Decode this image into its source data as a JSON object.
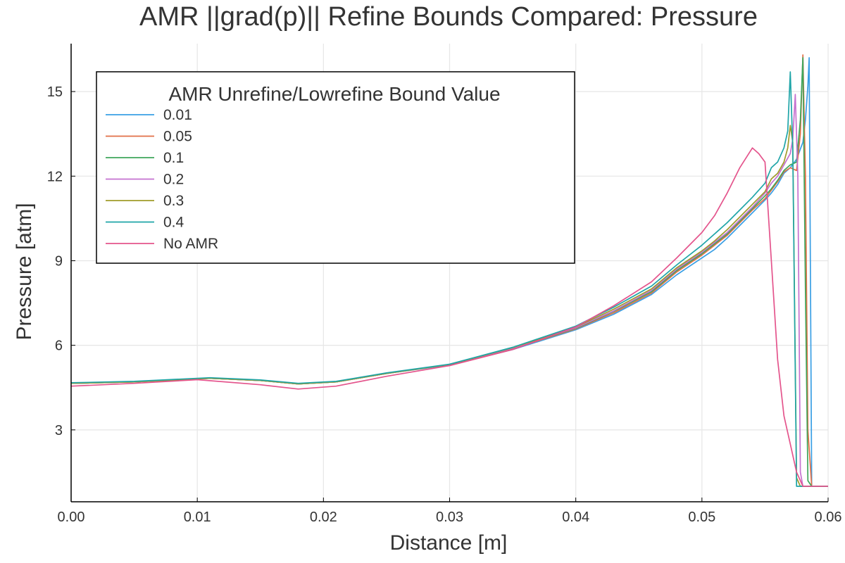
{
  "chart_data": {
    "type": "line",
    "title": "AMR ||grad(p)|| Refine Bounds Compared: Pressure",
    "xlabel": "Distance [m]",
    "ylabel": "Pressure [atm]",
    "xlim": [
      0.0,
      0.06
    ],
    "ylim": [
      0.45,
      16.7
    ],
    "xticks": [
      "0.00",
      "0.01",
      "0.02",
      "0.03",
      "0.04",
      "0.05",
      "0.06"
    ],
    "xtick_values": [
      0.0,
      0.01,
      0.02,
      0.03,
      0.04,
      0.05,
      0.06
    ],
    "yticks": [
      "3",
      "6",
      "9",
      "12",
      "15"
    ],
    "ytick_values": [
      3,
      6,
      9,
      12,
      15
    ],
    "grid": true,
    "legend_title": "AMR Unrefine/Lowrefine Bound Value",
    "legend_position": "top-left",
    "series": [
      {
        "name": "0.01",
        "color": "#3a9fe4",
        "x": [
          0.0,
          0.005,
          0.011,
          0.015,
          0.018,
          0.021,
          0.025,
          0.03,
          0.035,
          0.04,
          0.043,
          0.046,
          0.048,
          0.05,
          0.051,
          0.052,
          0.053,
          0.054,
          0.055,
          0.0555,
          0.056,
          0.0565,
          0.057,
          0.0575,
          0.058,
          0.0582,
          0.0584,
          0.0585,
          0.0587,
          0.06
        ],
        "y": [
          4.65,
          4.7,
          4.83,
          4.75,
          4.63,
          4.7,
          5.0,
          5.3,
          5.85,
          6.55,
          7.1,
          7.8,
          8.5,
          9.1,
          9.4,
          9.8,
          10.25,
          10.7,
          11.15,
          11.4,
          11.7,
          12.1,
          12.3,
          12.6,
          13.2,
          14.0,
          15.2,
          16.2,
          1.0,
          1.0
        ]
      },
      {
        "name": "0.05",
        "color": "#e26f46",
        "x": [
          0.0,
          0.005,
          0.011,
          0.015,
          0.018,
          0.021,
          0.025,
          0.03,
          0.035,
          0.04,
          0.043,
          0.046,
          0.048,
          0.05,
          0.051,
          0.052,
          0.053,
          0.054,
          0.055,
          0.0555,
          0.056,
          0.0565,
          0.057,
          0.0575,
          0.0578,
          0.058,
          0.0582,
          0.0584,
          0.0587,
          0.06
        ],
        "y": [
          4.65,
          4.7,
          4.83,
          4.75,
          4.63,
          4.7,
          5.0,
          5.32,
          5.88,
          6.58,
          7.15,
          7.85,
          8.6,
          9.2,
          9.55,
          9.9,
          10.35,
          10.8,
          11.2,
          11.5,
          11.8,
          12.15,
          12.3,
          12.2,
          13.5,
          16.3,
          12.0,
          3.0,
          1.0,
          1.0
        ]
      },
      {
        "name": "0.1",
        "color": "#3fa65b",
        "x": [
          0.0,
          0.005,
          0.011,
          0.015,
          0.018,
          0.021,
          0.025,
          0.03,
          0.035,
          0.04,
          0.043,
          0.046,
          0.048,
          0.05,
          0.051,
          0.052,
          0.053,
          0.054,
          0.055,
          0.0555,
          0.056,
          0.0565,
          0.057,
          0.0575,
          0.0578,
          0.058,
          0.0582,
          0.0584,
          0.0587,
          0.06
        ],
        "y": [
          4.65,
          4.7,
          4.83,
          4.75,
          4.63,
          4.7,
          5.0,
          5.32,
          5.9,
          6.6,
          7.2,
          7.9,
          8.65,
          9.25,
          9.6,
          9.95,
          10.4,
          10.85,
          11.3,
          11.55,
          11.85,
          12.2,
          12.4,
          12.5,
          14.0,
          16.2,
          8.0,
          1.2,
          1.0,
          1.0
        ]
      },
      {
        "name": "0.2",
        "color": "#c571cf",
        "x": [
          0.0,
          0.005,
          0.011,
          0.015,
          0.018,
          0.021,
          0.025,
          0.03,
          0.035,
          0.04,
          0.043,
          0.046,
          0.048,
          0.05,
          0.051,
          0.052,
          0.053,
          0.054,
          0.055,
          0.0555,
          0.056,
          0.0565,
          0.057,
          0.0572,
          0.0574,
          0.0576,
          0.0578,
          0.058,
          0.0583,
          0.06
        ],
        "y": [
          4.65,
          4.7,
          4.83,
          4.75,
          4.63,
          4.7,
          5.0,
          5.32,
          5.9,
          6.62,
          7.22,
          7.95,
          8.7,
          9.3,
          9.65,
          10.0,
          10.45,
          10.9,
          11.4,
          11.75,
          12.0,
          12.4,
          12.8,
          13.3,
          14.9,
          12.0,
          1.5,
          1.0,
          1.0,
          1.0
        ]
      },
      {
        "name": "0.3",
        "color": "#a09b2a",
        "x": [
          0.0,
          0.005,
          0.011,
          0.015,
          0.018,
          0.021,
          0.025,
          0.03,
          0.035,
          0.04,
          0.043,
          0.046,
          0.048,
          0.05,
          0.051,
          0.052,
          0.053,
          0.054,
          0.055,
          0.0555,
          0.056,
          0.0565,
          0.0568,
          0.057,
          0.0572,
          0.0575,
          0.0578,
          0.058,
          0.0583,
          0.06
        ],
        "y": [
          4.65,
          4.7,
          4.83,
          4.75,
          4.63,
          4.7,
          5.0,
          5.32,
          5.92,
          6.65,
          7.28,
          8.0,
          8.75,
          9.35,
          9.7,
          10.1,
          10.55,
          11.0,
          11.45,
          11.9,
          12.1,
          12.5,
          13.0,
          13.8,
          13.2,
          1.3,
          1.0,
          1.0,
          1.0,
          1.0
        ]
      },
      {
        "name": "0.4",
        "color": "#1fa5a8",
        "x": [
          0.0,
          0.005,
          0.011,
          0.015,
          0.018,
          0.021,
          0.025,
          0.03,
          0.035,
          0.04,
          0.043,
          0.046,
          0.048,
          0.05,
          0.051,
          0.052,
          0.053,
          0.054,
          0.055,
          0.0555,
          0.056,
          0.0565,
          0.0568,
          0.057,
          0.0572,
          0.0575,
          0.0578,
          0.058,
          0.0583,
          0.06
        ],
        "y": [
          4.67,
          4.72,
          4.85,
          4.77,
          4.65,
          4.72,
          5.02,
          5.33,
          5.93,
          6.68,
          7.35,
          8.1,
          8.85,
          9.55,
          9.95,
          10.35,
          10.8,
          11.25,
          11.75,
          12.3,
          12.5,
          13.0,
          13.6,
          15.7,
          13.0,
          1.0,
          1.0,
          1.0,
          1.0,
          1.0
        ]
      },
      {
        "name": "No AMR",
        "color": "#e4548c",
        "x": [
          0.0,
          0.005,
          0.01,
          0.015,
          0.018,
          0.021,
          0.025,
          0.03,
          0.035,
          0.04,
          0.043,
          0.046,
          0.048,
          0.05,
          0.051,
          0.052,
          0.053,
          0.054,
          0.0545,
          0.055,
          0.0555,
          0.056,
          0.0565,
          0.057,
          0.0575,
          0.058,
          0.0585,
          0.06
        ],
        "y": [
          4.55,
          4.65,
          4.78,
          4.6,
          4.45,
          4.55,
          4.9,
          5.28,
          5.85,
          6.65,
          7.4,
          8.25,
          9.1,
          10.0,
          10.6,
          11.4,
          12.3,
          13.0,
          12.8,
          12.5,
          9.0,
          5.5,
          3.5,
          2.5,
          1.5,
          1.0,
          1.0,
          1.0
        ]
      }
    ]
  }
}
